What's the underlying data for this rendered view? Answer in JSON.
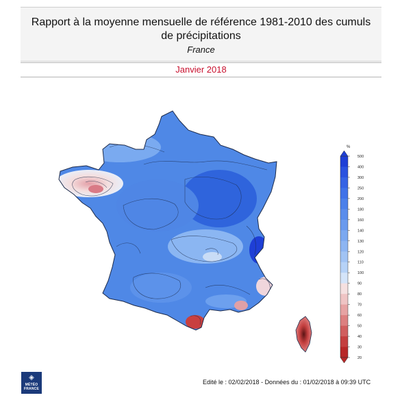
{
  "header": {
    "title_line1": "Rapport à la moyenne mensuelle de référence 1981-2010 des cumuls",
    "title_line2": "de précipitations",
    "region": "France"
  },
  "period": "Janvier 2018",
  "legend": {
    "unit": "%",
    "levels": [
      "500",
      "400",
      "300",
      "250",
      "200",
      "180",
      "160",
      "140",
      "130",
      "120",
      "110",
      "100",
      "90",
      "80",
      "70",
      "60",
      "50",
      "40",
      "30",
      "20"
    ],
    "colors": [
      "#1e3fd6",
      "#2a52df",
      "#3563e4",
      "#3f72e8",
      "#4a80ea",
      "#5a8dec",
      "#6a9aee",
      "#7ba8f0",
      "#8db5f2",
      "#a1c3f4",
      "#b6d2f7",
      "#d4e4f9",
      "#f5e0e0",
      "#efc4c4",
      "#e6a3a3",
      "#dc8080",
      "#d05e5e",
      "#c43f3f",
      "#b72727"
    ]
  },
  "footer": {
    "edit_text": "Edité le : 02/02/2018 - Données du : 01/02/2018 à 09:39 UTC"
  },
  "logo": {
    "line1": "MÉTÉO",
    "line2": "FRANCE"
  }
}
